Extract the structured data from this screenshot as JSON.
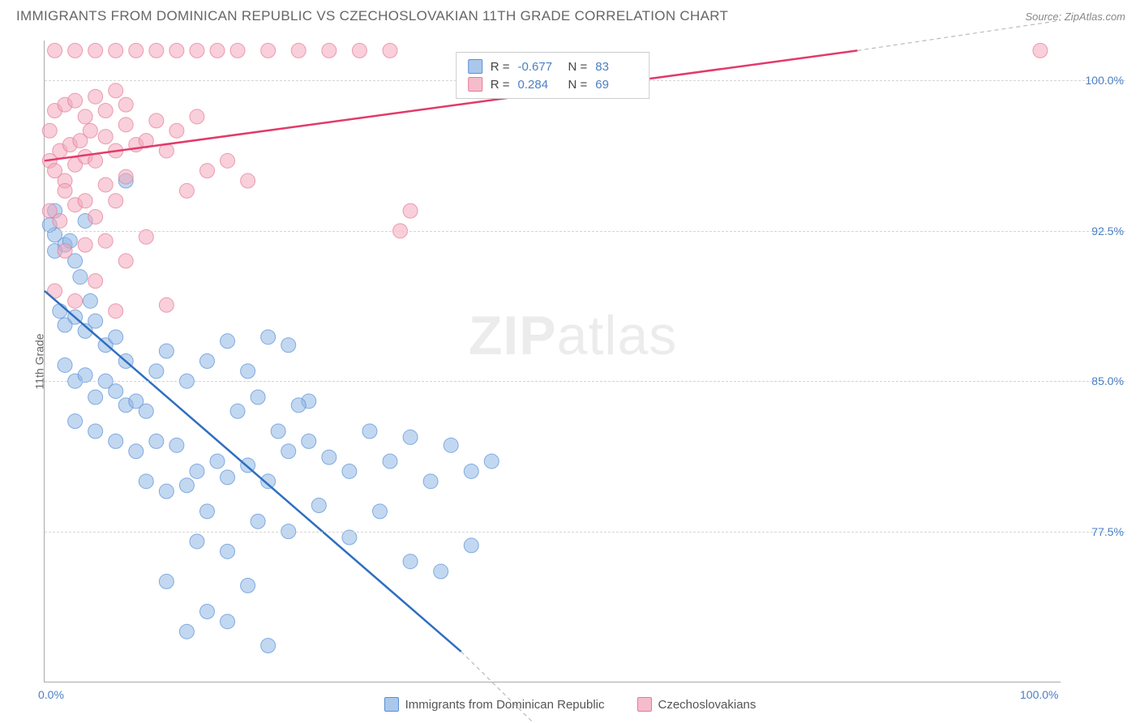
{
  "header": {
    "title": "IMMIGRANTS FROM DOMINICAN REPUBLIC VS CZECHOSLOVAKIAN 11TH GRADE CORRELATION CHART",
    "source": "Source: ZipAtlas.com"
  },
  "chart": {
    "type": "scatter",
    "ylabel": "11th Grade",
    "watermark": "ZIPatlas",
    "background_color": "#ffffff",
    "grid_color": "#d5d5d5",
    "axis_color": "#aaaaaa",
    "tick_color": "#4a7fc4",
    "xlim": [
      0,
      100
    ],
    "ylim": [
      70,
      102
    ],
    "xticks": [
      {
        "value": 0,
        "label": "0.0%"
      },
      {
        "value": 100,
        "label": "100.0%"
      }
    ],
    "yticks": [
      {
        "value": 77.5,
        "label": "77.5%"
      },
      {
        "value": 85.0,
        "label": "85.0%"
      },
      {
        "value": 92.5,
        "label": "92.5%"
      },
      {
        "value": 100.0,
        "label": "100.0%"
      }
    ],
    "marker_radius": 9,
    "marker_opacity": 0.55,
    "series": [
      {
        "name": "Immigrants from Dominican Republic",
        "color": "#8fb8e6",
        "stroke": "#5a8fd4",
        "fill_swatch": "#a9c8ec",
        "R": "-0.677",
        "N": "83",
        "trend": {
          "x1": 0,
          "y1": 89.5,
          "x2": 41,
          "y2": 71.5,
          "extend_x2": 50,
          "extend_y2": 67,
          "color": "#2f6fc0",
          "width": 2.5
        },
        "points": [
          [
            1,
            92.3
          ],
          [
            2,
            91.8
          ],
          [
            2.5,
            92.0
          ],
          [
            3,
            91.0
          ],
          [
            3.5,
            90.2
          ],
          [
            4,
            93.0
          ],
          [
            4.5,
            89.0
          ],
          [
            1.5,
            88.5
          ],
          [
            2,
            87.8
          ],
          [
            3,
            88.2
          ],
          [
            4,
            87.5
          ],
          [
            5,
            88.0
          ],
          [
            6,
            86.8
          ],
          [
            7,
            87.2
          ],
          [
            8,
            86.0
          ],
          [
            2,
            85.8
          ],
          [
            3,
            85.0
          ],
          [
            4,
            85.3
          ],
          [
            5,
            84.2
          ],
          [
            6,
            85.0
          ],
          [
            7,
            84.5
          ],
          [
            8,
            83.8
          ],
          [
            9,
            84.0
          ],
          [
            10,
            83.5
          ],
          [
            11,
            85.5
          ],
          [
            12,
            86.5
          ],
          [
            14,
            85.0
          ],
          [
            16,
            86.0
          ],
          [
            18,
            87.0
          ],
          [
            20,
            85.5
          ],
          [
            22,
            87.2
          ],
          [
            24,
            86.8
          ],
          [
            26,
            84.0
          ],
          [
            3,
            83.0
          ],
          [
            5,
            82.5
          ],
          [
            7,
            82.0
          ],
          [
            9,
            81.5
          ],
          [
            11,
            82.0
          ],
          [
            13,
            81.8
          ],
          [
            15,
            80.5
          ],
          [
            17,
            81.0
          ],
          [
            19,
            83.5
          ],
          [
            21,
            84.2
          ],
          [
            23,
            82.5
          ],
          [
            25,
            83.8
          ],
          [
            10,
            80.0
          ],
          [
            12,
            79.5
          ],
          [
            14,
            79.8
          ],
          [
            16,
            78.5
          ],
          [
            18,
            80.2
          ],
          [
            20,
            80.8
          ],
          [
            22,
            80.0
          ],
          [
            24,
            81.5
          ],
          [
            26,
            82.0
          ],
          [
            28,
            81.2
          ],
          [
            30,
            80.5
          ],
          [
            32,
            82.5
          ],
          [
            34,
            81.0
          ],
          [
            36,
            82.2
          ],
          [
            38,
            80.0
          ],
          [
            40,
            81.8
          ],
          [
            42,
            80.5
          ],
          [
            44,
            81.0
          ],
          [
            15,
            77.0
          ],
          [
            18,
            76.5
          ],
          [
            21,
            78.0
          ],
          [
            24,
            77.5
          ],
          [
            27,
            78.8
          ],
          [
            30,
            77.2
          ],
          [
            33,
            78.5
          ],
          [
            36,
            76.0
          ],
          [
            39,
            75.5
          ],
          [
            42,
            76.8
          ],
          [
            12,
            75.0
          ],
          [
            16,
            73.5
          ],
          [
            20,
            74.8
          ],
          [
            14,
            72.5
          ],
          [
            18,
            73.0
          ],
          [
            22,
            71.8
          ],
          [
            8,
            95.0
          ],
          [
            1,
            93.5
          ],
          [
            0.5,
            92.8
          ],
          [
            1,
            91.5
          ]
        ]
      },
      {
        "name": "Czechoslovakians",
        "color": "#f2a8bb",
        "stroke": "#e67a96",
        "fill_swatch": "#f6bccb",
        "R": "0.284",
        "N": "69",
        "trend": {
          "x1": 0,
          "y1": 96.0,
          "x2": 80,
          "y2": 101.5,
          "extend_x2": 100,
          "extend_y2": 103,
          "color": "#e23a6a",
          "width": 2.5
        },
        "points": [
          [
            1,
            101.5
          ],
          [
            3,
            101.5
          ],
          [
            5,
            101.5
          ],
          [
            7,
            101.5
          ],
          [
            9,
            101.5
          ],
          [
            11,
            101.5
          ],
          [
            13,
            101.5
          ],
          [
            15,
            101.5
          ],
          [
            17,
            101.5
          ],
          [
            19,
            101.5
          ],
          [
            22,
            101.5
          ],
          [
            25,
            101.5
          ],
          [
            28,
            101.5
          ],
          [
            31,
            101.5
          ],
          [
            34,
            101.5
          ],
          [
            98,
            101.5
          ],
          [
            0.5,
            96.0
          ],
          [
            1,
            95.5
          ],
          [
            1.5,
            96.5
          ],
          [
            2,
            95.0
          ],
          [
            2.5,
            96.8
          ],
          [
            3,
            95.8
          ],
          [
            3.5,
            97.0
          ],
          [
            4,
            96.2
          ],
          [
            4.5,
            97.5
          ],
          [
            5,
            96.0
          ],
          [
            6,
            97.2
          ],
          [
            7,
            96.5
          ],
          [
            8,
            97.8
          ],
          [
            9,
            96.8
          ],
          [
            10,
            97.0
          ],
          [
            11,
            98.0
          ],
          [
            12,
            96.5
          ],
          [
            13,
            97.5
          ],
          [
            15,
            98.2
          ],
          [
            1,
            98.5
          ],
          [
            2,
            98.8
          ],
          [
            3,
            99.0
          ],
          [
            4,
            98.2
          ],
          [
            5,
            99.2
          ],
          [
            6,
            98.5
          ],
          [
            7,
            99.5
          ],
          [
            8,
            98.8
          ],
          [
            0.5,
            93.5
          ],
          [
            1.5,
            93.0
          ],
          [
            3,
            93.8
          ],
          [
            5,
            93.2
          ],
          [
            7,
            94.0
          ],
          [
            2,
            91.5
          ],
          [
            4,
            91.8
          ],
          [
            6,
            92.0
          ],
          [
            8,
            91.0
          ],
          [
            10,
            92.2
          ],
          [
            1,
            89.5
          ],
          [
            3,
            89.0
          ],
          [
            5,
            90.0
          ],
          [
            7,
            88.5
          ],
          [
            12,
            88.8
          ],
          [
            36,
            93.5
          ],
          [
            35,
            92.5
          ],
          [
            16,
            95.5
          ],
          [
            18,
            96.0
          ],
          [
            20,
            95.0
          ],
          [
            0.5,
            97.5
          ],
          [
            2,
            94.5
          ],
          [
            4,
            94.0
          ],
          [
            6,
            94.8
          ],
          [
            8,
            95.2
          ],
          [
            14,
            94.5
          ]
        ]
      }
    ]
  },
  "bottom_legend": [
    {
      "swatch": "#a9c8ec",
      "border": "#5a8fd4",
      "label": "Immigrants from Dominican Republic"
    },
    {
      "swatch": "#f6bccb",
      "border": "#e67a96",
      "label": "Czechoslovakians"
    }
  ]
}
